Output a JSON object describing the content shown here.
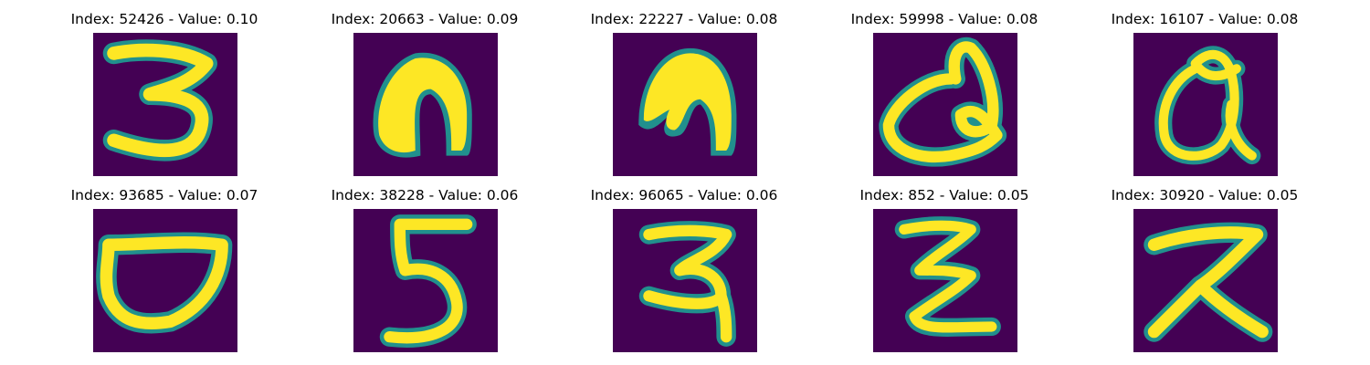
{
  "colors": {
    "background": "#440154",
    "low_mid": "#31688e",
    "mid": "#21908d",
    "high_mid": "#5ec962",
    "foreground": "#fde725"
  },
  "panels": [
    {
      "title": "Index: 52426 - Value: 0.10",
      "glyph": "3"
    },
    {
      "title": "Index: 20663 - Value: 0.09",
      "glyph": "arch-solid"
    },
    {
      "title": "Index: 22227 - Value: 0.08",
      "glyph": "arch-curl"
    },
    {
      "title": "Index: 59998 - Value: 0.08",
      "glyph": "loop-a"
    },
    {
      "title": "Index: 16107 - Value: 0.08",
      "glyph": "loop-a2"
    },
    {
      "title": "Index: 93685 - Value: 0.07",
      "glyph": "bowl"
    },
    {
      "title": "Index: 38228 - Value: 0.06",
      "glyph": "5"
    },
    {
      "title": "Index: 96065 - Value: 0.06",
      "glyph": "ra"
    },
    {
      "title": "Index: 852 - Value: 0.05",
      "glyph": "zigzag"
    },
    {
      "title": "Index: 30920 - Value: 0.05",
      "glyph": "x-bar"
    }
  ]
}
